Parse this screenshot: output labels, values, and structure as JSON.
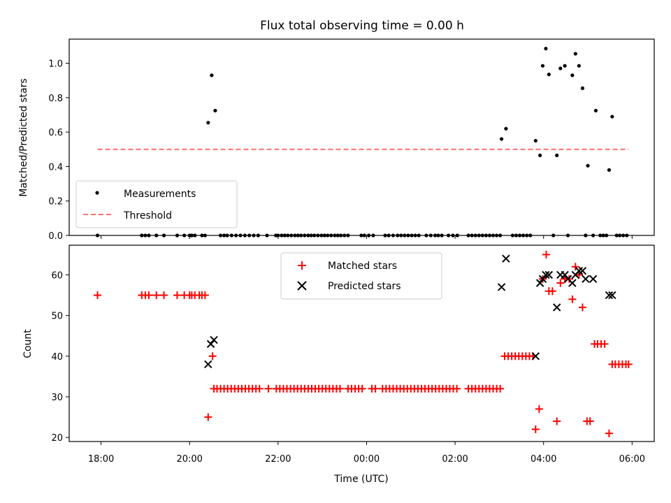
{
  "chart_data": [
    {
      "type": "scatter",
      "title": "Flux total observing time = 0.00 h",
      "xlabel": "",
      "ylabel": "Matched/Predicted stars",
      "xlim": [
        17.28,
        30.5
      ],
      "ylim": [
        0,
        1.14
      ],
      "yticks": [
        "0.0",
        "0.2",
        "0.4",
        "0.6",
        "0.8",
        "1.0"
      ],
      "legend_position": "lower-left",
      "series": [
        {
          "name": "Measurements",
          "marker": "dot",
          "color": "#000000",
          "points": [
            [
              17.92,
              0
            ],
            [
              18.92,
              0
            ],
            [
              19.0,
              0
            ],
            [
              19.08,
              0
            ],
            [
              19.25,
              0
            ],
            [
              19.42,
              0
            ],
            [
              19.72,
              0
            ],
            [
              19.88,
              0
            ],
            [
              20.0,
              0
            ],
            [
              20.05,
              0
            ],
            [
              20.12,
              0
            ],
            [
              20.28,
              0
            ],
            [
              20.35,
              0
            ],
            [
              20.42,
              0.655
            ],
            [
              20.5,
              0.93
            ],
            [
              20.58,
              0.725
            ],
            [
              20.7,
              0
            ],
            [
              20.78,
              0
            ],
            [
              20.85,
              0
            ],
            [
              20.95,
              0
            ],
            [
              21.05,
              0
            ],
            [
              21.15,
              0
            ],
            [
              21.25,
              0
            ],
            [
              21.35,
              0
            ],
            [
              21.45,
              0
            ],
            [
              21.55,
              0
            ],
            [
              21.75,
              0
            ],
            [
              21.95,
              0
            ],
            [
              22.0,
              0
            ],
            [
              22.08,
              0
            ],
            [
              22.15,
              0
            ],
            [
              22.22,
              0
            ],
            [
              22.3,
              0
            ],
            [
              22.38,
              0
            ],
            [
              22.45,
              0
            ],
            [
              22.52,
              0
            ],
            [
              22.6,
              0
            ],
            [
              22.68,
              0
            ],
            [
              22.75,
              0
            ],
            [
              22.82,
              0
            ],
            [
              22.9,
              0
            ],
            [
              22.98,
              0
            ],
            [
              23.05,
              0
            ],
            [
              23.12,
              0
            ],
            [
              23.2,
              0
            ],
            [
              23.28,
              0
            ],
            [
              23.35,
              0
            ],
            [
              23.42,
              0
            ],
            [
              23.5,
              0
            ],
            [
              23.58,
              0
            ],
            [
              23.88,
              0
            ],
            [
              23.95,
              0
            ],
            [
              24.05,
              0
            ],
            [
              24.15,
              0
            ],
            [
              24.42,
              0
            ],
            [
              24.5,
              0
            ],
            [
              24.6,
              0
            ],
            [
              24.7,
              0
            ],
            [
              24.78,
              0
            ],
            [
              24.86,
              0
            ],
            [
              24.94,
              0
            ],
            [
              25.02,
              0
            ],
            [
              25.1,
              0
            ],
            [
              25.18,
              0
            ],
            [
              25.35,
              0
            ],
            [
              25.45,
              0
            ],
            [
              25.55,
              0
            ],
            [
              25.62,
              0
            ],
            [
              25.7,
              0
            ],
            [
              25.85,
              0
            ],
            [
              25.95,
              0
            ],
            [
              26.05,
              0
            ],
            [
              26.3,
              0
            ],
            [
              26.38,
              0
            ],
            [
              26.46,
              0
            ],
            [
              26.54,
              0
            ],
            [
              26.62,
              0
            ],
            [
              26.7,
              0
            ],
            [
              26.78,
              0
            ],
            [
              26.86,
              0
            ],
            [
              26.94,
              0
            ],
            [
              27.02,
              0
            ],
            [
              27.05,
              0.56
            ],
            [
              27.15,
              0.62
            ],
            [
              27.3,
              0
            ],
            [
              27.38,
              0
            ],
            [
              27.46,
              0
            ],
            [
              27.54,
              0
            ],
            [
              27.62,
              0
            ],
            [
              27.7,
              0
            ],
            [
              27.82,
              0.55
            ],
            [
              27.92,
              0.465
            ],
            [
              27.98,
              0.985
            ],
            [
              28.05,
              1.085
            ],
            [
              28.12,
              0.935
            ],
            [
              28.22,
              0
            ],
            [
              28.3,
              0.465
            ],
            [
              28.38,
              0.97
            ],
            [
              28.48,
              0.985
            ],
            [
              28.55,
              0
            ],
            [
              28.65,
              0.93
            ],
            [
              28.72,
              1.055
            ],
            [
              28.8,
              0.985
            ],
            [
              28.88,
              0.855
            ],
            [
              28.95,
              0
            ],
            [
              29.0,
              0.405
            ],
            [
              29.12,
              0
            ],
            [
              29.18,
              0.725
            ],
            [
              29.28,
              0
            ],
            [
              29.35,
              0
            ],
            [
              29.42,
              0
            ],
            [
              29.48,
              0.38
            ],
            [
              29.55,
              0.69
            ],
            [
              29.65,
              0
            ],
            [
              29.72,
              0
            ],
            [
              29.8,
              0
            ],
            [
              29.88,
              0
            ]
          ]
        },
        {
          "name": "Threshold",
          "marker": "dashed-line",
          "color": "#ff6f6f",
          "x": [
            17.92,
            29.92
          ],
          "y": [
            0.5,
            0.5
          ]
        }
      ]
    },
    {
      "type": "scatter",
      "title": "",
      "xlabel": "Time (UTC)",
      "ylabel": "Count",
      "xlim": [
        17.28,
        30.5
      ],
      "ylim": [
        19,
        67.3
      ],
      "xticks": [
        {
          "value": 18,
          "label": "18:00"
        },
        {
          "value": 20,
          "label": "20:00"
        },
        {
          "value": 22,
          "label": "22:00"
        },
        {
          "value": 24,
          "label": "00:00"
        },
        {
          "value": 26,
          "label": "02:00"
        },
        {
          "value": 28,
          "label": "04:00"
        },
        {
          "value": 30,
          "label": "06:00"
        }
      ],
      "yticks": [
        "20",
        "30",
        "40",
        "50",
        "60"
      ],
      "legend_position": "top-center",
      "series": [
        {
          "name": "Matched stars",
          "marker": "plus",
          "color": "#ff0000",
          "points": [
            [
              17.92,
              55
            ],
            [
              18.92,
              55
            ],
            [
              19.0,
              55
            ],
            [
              19.08,
              55
            ],
            [
              19.25,
              55
            ],
            [
              19.42,
              55
            ],
            [
              19.72,
              55
            ],
            [
              19.88,
              55
            ],
            [
              20.0,
              55
            ],
            [
              20.05,
              55
            ],
            [
              20.12,
              55
            ],
            [
              20.22,
              55
            ],
            [
              20.28,
              55
            ],
            [
              20.35,
              55
            ],
            [
              20.42,
              25
            ],
            [
              20.52,
              40
            ],
            [
              20.55,
              32
            ],
            [
              20.62,
              32
            ],
            [
              20.7,
              32
            ],
            [
              20.78,
              32
            ],
            [
              20.86,
              32
            ],
            [
              20.94,
              32
            ],
            [
              21.02,
              32
            ],
            [
              21.1,
              32
            ],
            [
              21.18,
              32
            ],
            [
              21.26,
              32
            ],
            [
              21.34,
              32
            ],
            [
              21.42,
              32
            ],
            [
              21.5,
              32
            ],
            [
              21.58,
              32
            ],
            [
              21.78,
              32
            ],
            [
              21.96,
              32
            ],
            [
              22.04,
              32
            ],
            [
              22.12,
              32
            ],
            [
              22.2,
              32
            ],
            [
              22.28,
              32
            ],
            [
              22.36,
              32
            ],
            [
              22.44,
              32
            ],
            [
              22.52,
              32
            ],
            [
              22.6,
              32
            ],
            [
              22.68,
              32
            ],
            [
              22.76,
              32
            ],
            [
              22.84,
              32
            ],
            [
              22.92,
              32
            ],
            [
              23.0,
              32
            ],
            [
              23.08,
              32
            ],
            [
              23.16,
              32
            ],
            [
              23.24,
              32
            ],
            [
              23.32,
              32
            ],
            [
              23.4,
              32
            ],
            [
              23.58,
              32
            ],
            [
              23.66,
              32
            ],
            [
              23.74,
              32
            ],
            [
              23.82,
              32
            ],
            [
              23.9,
              32
            ],
            [
              24.12,
              32
            ],
            [
              24.2,
              32
            ],
            [
              24.36,
              32
            ],
            [
              24.44,
              32
            ],
            [
              24.52,
              32
            ],
            [
              24.6,
              32
            ],
            [
              24.68,
              32
            ],
            [
              24.76,
              32
            ],
            [
              24.84,
              32
            ],
            [
              24.92,
              32
            ],
            [
              25.0,
              32
            ],
            [
              25.08,
              32
            ],
            [
              25.16,
              32
            ],
            [
              25.24,
              32
            ],
            [
              25.32,
              32
            ],
            [
              25.4,
              32
            ],
            [
              25.48,
              32
            ],
            [
              25.56,
              32
            ],
            [
              25.64,
              32
            ],
            [
              25.72,
              32
            ],
            [
              25.8,
              32
            ],
            [
              25.88,
              32
            ],
            [
              25.96,
              32
            ],
            [
              26.04,
              32
            ],
            [
              26.3,
              32
            ],
            [
              26.38,
              32
            ],
            [
              26.46,
              32
            ],
            [
              26.54,
              32
            ],
            [
              26.62,
              32
            ],
            [
              26.7,
              32
            ],
            [
              26.78,
              32
            ],
            [
              26.86,
              32
            ],
            [
              26.94,
              32
            ],
            [
              27.02,
              32
            ],
            [
              27.12,
              40
            ],
            [
              27.2,
              40
            ],
            [
              27.28,
              40
            ],
            [
              27.36,
              40
            ],
            [
              27.44,
              40
            ],
            [
              27.52,
              40
            ],
            [
              27.6,
              40
            ],
            [
              27.68,
              40
            ],
            [
              27.76,
              40
            ],
            [
              27.82,
              22
            ],
            [
              27.9,
              27
            ],
            [
              27.98,
              59
            ],
            [
              28.06,
              65
            ],
            [
              28.12,
              56
            ],
            [
              28.2,
              56
            ],
            [
              28.3,
              24
            ],
            [
              28.38,
              58
            ],
            [
              28.48,
              59
            ],
            [
              28.58,
              59
            ],
            [
              28.65,
              54
            ],
            [
              28.72,
              62
            ],
            [
              28.8,
              60
            ],
            [
              28.88,
              52
            ],
            [
              28.98,
              24
            ],
            [
              29.05,
              24
            ],
            [
              29.15,
              43
            ],
            [
              29.22,
              43
            ],
            [
              29.3,
              43
            ],
            [
              29.38,
              43
            ],
            [
              29.48,
              21
            ],
            [
              29.55,
              38
            ],
            [
              29.62,
              38
            ],
            [
              29.7,
              38
            ],
            [
              29.78,
              38
            ],
            [
              29.86,
              38
            ],
            [
              29.92,
              38
            ]
          ]
        },
        {
          "name": "Predicted stars",
          "marker": "x",
          "color": "#000000",
          "points": [
            [
              20.42,
              38
            ],
            [
              20.48,
              43
            ],
            [
              20.55,
              44
            ],
            [
              27.05,
              57
            ],
            [
              27.15,
              64
            ],
            [
              27.82,
              40
            ],
            [
              27.92,
              58
            ],
            [
              27.98,
              59
            ],
            [
              28.05,
              60
            ],
            [
              28.12,
              60
            ],
            [
              28.3,
              52
            ],
            [
              28.38,
              60
            ],
            [
              28.48,
              60
            ],
            [
              28.55,
              59
            ],
            [
              28.65,
              58
            ],
            [
              28.72,
              60
            ],
            [
              28.8,
              61
            ],
            [
              28.88,
              61
            ],
            [
              28.95,
              59
            ],
            [
              29.12,
              59
            ],
            [
              29.48,
              55
            ],
            [
              29.55,
              55
            ]
          ]
        }
      ]
    }
  ]
}
